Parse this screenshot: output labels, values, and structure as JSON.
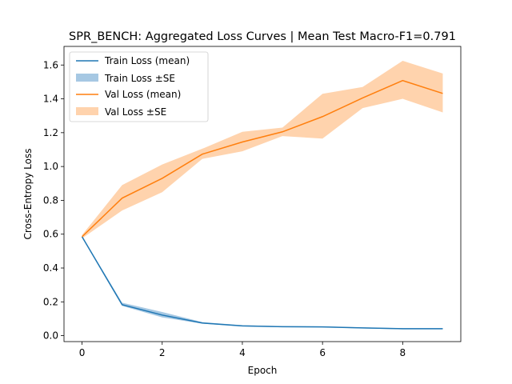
{
  "chart_data": {
    "type": "line",
    "title": "SPR_BENCH: Aggregated Loss Curves | Mean Test Macro-F1=0.791",
    "xlabel": "Epoch",
    "ylabel": "Cross-Entropy Loss",
    "xlim": [
      -0.45,
      9.45
    ],
    "ylim": [
      -0.035,
      1.71
    ],
    "xticks": [
      0,
      2,
      4,
      6,
      8
    ],
    "yticks": [
      0.0,
      0.2,
      0.4,
      0.6,
      0.8,
      1.0,
      1.2,
      1.4,
      1.6
    ],
    "legend_position": "top-left",
    "grid": false,
    "x": [
      0,
      1,
      2,
      3,
      4,
      5,
      6,
      7,
      8,
      9
    ],
    "series": [
      {
        "name": "Train Loss (mean)",
        "band_name": "Train Loss ±SE",
        "color": "#1f77b4",
        "band_color": "#a6c8e3",
        "values": [
          0.585,
          0.183,
          0.122,
          0.075,
          0.058,
          0.053,
          0.052,
          0.046,
          0.041,
          0.041
        ],
        "lower": [
          0.58,
          0.176,
          0.108,
          0.071,
          0.055,
          0.05,
          0.049,
          0.043,
          0.038,
          0.038
        ],
        "upper": [
          0.59,
          0.195,
          0.14,
          0.08,
          0.062,
          0.056,
          0.055,
          0.049,
          0.044,
          0.044
        ]
      },
      {
        "name": "Val Loss (mean)",
        "band_name": "Val Loss ±SE",
        "color": "#ff7f0e",
        "band_color": "#ffd3ad",
        "values": [
          0.585,
          0.813,
          0.93,
          1.073,
          1.145,
          1.205,
          1.295,
          1.405,
          1.508,
          1.432
        ],
        "lower": [
          0.575,
          0.74,
          0.848,
          1.045,
          1.09,
          1.18,
          1.165,
          1.345,
          1.4,
          1.32
        ],
        "upper": [
          0.595,
          0.89,
          1.012,
          1.105,
          1.205,
          1.23,
          1.43,
          1.47,
          1.625,
          1.55
        ]
      }
    ]
  }
}
